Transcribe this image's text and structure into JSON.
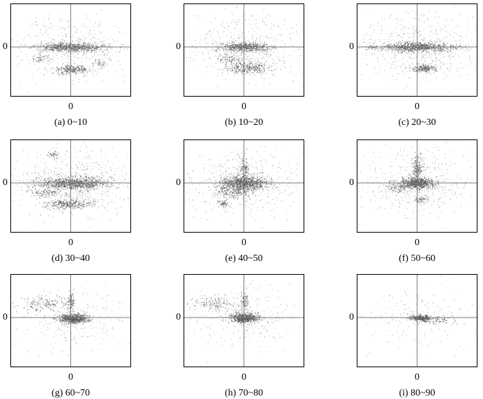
{
  "chart_data": [
    {
      "type": "scatter",
      "panel": "a",
      "caption": "(a) 0~10",
      "xticks": [
        "0"
      ],
      "yticks": [
        "0"
      ],
      "clusters": [
        {
          "cx": 0,
          "cy": 0,
          "sx": 0.28,
          "sy": 0.05,
          "n": 700
        },
        {
          "cx": 0.02,
          "cy": -0.48,
          "sx": 0.14,
          "sy": 0.05,
          "n": 260
        },
        {
          "cx": -0.5,
          "cy": -0.25,
          "sx": 0.08,
          "sy": 0.05,
          "n": 50
        },
        {
          "cx": 0.5,
          "cy": -0.35,
          "sx": 0.06,
          "sy": 0.05,
          "n": 40
        }
      ],
      "background_points": 500
    },
    {
      "type": "scatter",
      "panel": "b",
      "caption": "(b) 10~20",
      "xticks": [
        "0"
      ],
      "yticks": [
        "0"
      ],
      "clusters": [
        {
          "cx": 0,
          "cy": 0,
          "sx": 0.22,
          "sy": 0.05,
          "n": 550
        },
        {
          "cx": 0.05,
          "cy": -0.45,
          "sx": 0.18,
          "sy": 0.06,
          "n": 300
        },
        {
          "cx": -0.2,
          "cy": -0.25,
          "sx": 0.12,
          "sy": 0.05,
          "n": 80
        }
      ],
      "background_points": 500
    },
    {
      "type": "scatter",
      "panel": "c",
      "caption": "(c) 20~30",
      "xticks": [
        "0"
      ],
      "yticks": [
        "0"
      ],
      "clusters": [
        {
          "cx": 0,
          "cy": 0,
          "sx": 0.3,
          "sy": 0.05,
          "n": 800
        },
        {
          "cx": 0.1,
          "cy": -0.45,
          "sx": 0.1,
          "sy": 0.04,
          "n": 200
        },
        {
          "cx": -0.75,
          "cy": 0,
          "sx": 0.05,
          "sy": 0.02,
          "n": 40
        }
      ],
      "background_points": 600
    },
    {
      "type": "scatter",
      "panel": "d",
      "caption": "(d) 30~40",
      "xticks": [
        "0"
      ],
      "yticks": [
        "0"
      ],
      "clusters": [
        {
          "cx": 0.05,
          "cy": 0,
          "sx": 0.3,
          "sy": 0.06,
          "n": 900
        },
        {
          "cx": -0.05,
          "cy": -0.45,
          "sx": 0.2,
          "sy": 0.05,
          "n": 300
        },
        {
          "cx": -0.4,
          "cy": -0.2,
          "sx": 0.12,
          "sy": 0.05,
          "n": 100
        },
        {
          "cx": -0.3,
          "cy": 0.6,
          "sx": 0.05,
          "sy": 0.04,
          "n": 40
        }
      ],
      "background_points": 700
    },
    {
      "type": "scatter",
      "panel": "e",
      "caption": "(e) 40~50",
      "xticks": [
        "0"
      ],
      "yticks": [
        "0"
      ],
      "clusters": [
        {
          "cx": 0,
          "cy": 0,
          "sx": 0.2,
          "sy": 0.07,
          "n": 800
        },
        {
          "cx": -0.15,
          "cy": -0.15,
          "sx": 0.15,
          "sy": 0.08,
          "n": 250
        },
        {
          "cx": -0.35,
          "cy": -0.45,
          "sx": 0.05,
          "sy": 0.04,
          "n": 60
        },
        {
          "cx": 0,
          "cy": 0.3,
          "sx": 0.04,
          "sy": 0.12,
          "n": 120
        }
      ],
      "background_points": 600
    },
    {
      "type": "scatter",
      "panel": "f",
      "caption": "(f) 50~60",
      "xticks": [
        "0"
      ],
      "yticks": [
        "0"
      ],
      "clusters": [
        {
          "cx": 0,
          "cy": 0,
          "sx": 0.15,
          "sy": 0.06,
          "n": 700
        },
        {
          "cx": 0,
          "cy": 0.3,
          "sx": 0.04,
          "sy": 0.15,
          "n": 200
        },
        {
          "cx": 0.05,
          "cy": -0.35,
          "sx": 0.05,
          "sy": 0.04,
          "n": 60
        },
        {
          "cx": -0.35,
          "cy": -0.1,
          "sx": 0.1,
          "sy": 0.05,
          "n": 80
        }
      ],
      "background_points": 500
    },
    {
      "type": "scatter",
      "panel": "g",
      "caption": "(g) 60~70",
      "xticks": [
        "0"
      ],
      "yticks": [
        "0"
      ],
      "clusters": [
        {
          "cx": 0.05,
          "cy": -0.02,
          "sx": 0.12,
          "sy": 0.05,
          "n": 650
        },
        {
          "cx": -0.45,
          "cy": 0.3,
          "sx": 0.2,
          "sy": 0.08,
          "n": 150
        },
        {
          "cx": 0,
          "cy": 0.35,
          "sx": 0.03,
          "sy": 0.1,
          "n": 100
        }
      ],
      "background_points": 300
    },
    {
      "type": "scatter",
      "panel": "h",
      "caption": "(h) 70~80",
      "xticks": [
        "0"
      ],
      "yticks": [
        "0"
      ],
      "clusters": [
        {
          "cx": 0,
          "cy": 0,
          "sx": 0.12,
          "sy": 0.05,
          "n": 650
        },
        {
          "cx": -0.45,
          "cy": 0.3,
          "sx": 0.2,
          "sy": 0.08,
          "n": 150
        },
        {
          "cx": 0,
          "cy": 0.35,
          "sx": 0.04,
          "sy": 0.1,
          "n": 80
        }
      ],
      "background_points": 300
    },
    {
      "type": "scatter",
      "panel": "i",
      "caption": "(i) 80~90",
      "xticks": [
        "0"
      ],
      "yticks": [
        "0"
      ],
      "clusters": [
        {
          "cx": 0.05,
          "cy": 0,
          "sx": 0.08,
          "sy": 0.03,
          "n": 350
        },
        {
          "cx": 0.3,
          "cy": -0.05,
          "sx": 0.15,
          "sy": 0.04,
          "n": 100
        }
      ],
      "background_points": 200
    }
  ],
  "style": {
    "point_color": "#555555",
    "axis_color": "#7a7a7a",
    "frame_color": "#000000"
  }
}
